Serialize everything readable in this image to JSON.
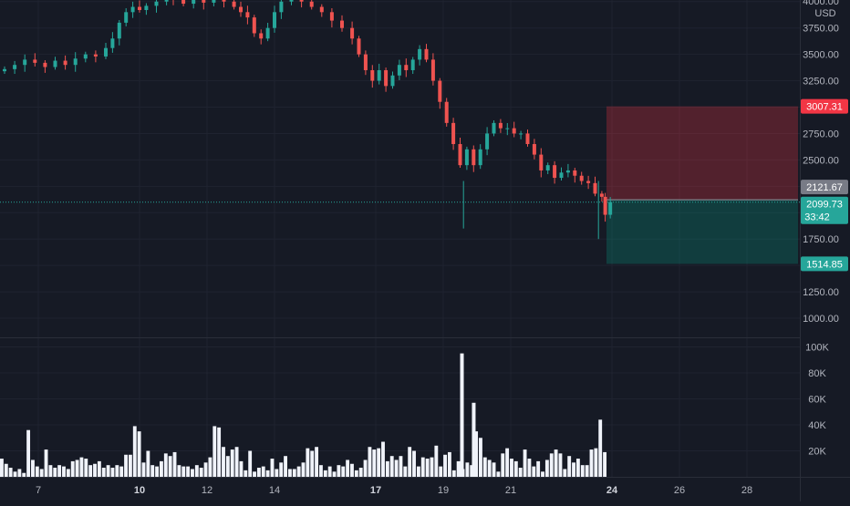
{
  "chart_data": {
    "type": "candlestick",
    "currency_label": "USD",
    "price_axis": {
      "range": [
        850,
        4050
      ],
      "ticks": [
        "4000.00",
        "3750.00",
        "3500.00",
        "3250.00",
        "3000.00",
        "2750.00",
        "2500.00",
        "2250.00",
        "2000.00",
        "1750.00",
        "1500.00",
        "1250.00",
        "1000.00"
      ]
    },
    "volume_axis": {
      "range": [
        0,
        105000
      ],
      "ticks": [
        "100K",
        "80K",
        "60K",
        "40K",
        "20K"
      ]
    },
    "time_axis": {
      "labels": [
        {
          "day": 7,
          "text": "7",
          "bold": false
        },
        {
          "day": 10,
          "text": "10",
          "bold": true
        },
        {
          "day": 12,
          "text": "12",
          "bold": false
        },
        {
          "day": 14,
          "text": "14",
          "bold": false
        },
        {
          "day": 17,
          "text": "17",
          "bold": true
        },
        {
          "day": 19,
          "text": "19",
          "bold": false
        },
        {
          "day": 21,
          "text": "21",
          "bold": false
        },
        {
          "day": 24,
          "text": "24",
          "bold": true
        },
        {
          "day": 26,
          "text": "26",
          "bold": false
        },
        {
          "day": 28,
          "text": "28",
          "bold": false
        }
      ]
    },
    "position": {
      "stop_loss": 3007.31,
      "entry": 2121.67,
      "take_profit": 1514.85,
      "stop_label": "3007.31",
      "entry_label": "2121.67",
      "target_label": "1514.85"
    },
    "current_price": {
      "value": 2099.73,
      "label": "2099.73",
      "countdown": "33:42"
    },
    "series": [
      {
        "name": "price",
        "description_points_day_close": [
          [
            6.0,
            3360
          ],
          [
            6.3,
            3400
          ],
          [
            6.6,
            3450
          ],
          [
            6.9,
            3420
          ],
          [
            7.2,
            3380
          ],
          [
            7.5,
            3440
          ],
          [
            7.8,
            3400
          ],
          [
            8.1,
            3460
          ],
          [
            8.4,
            3500
          ],
          [
            8.7,
            3480
          ],
          [
            9.0,
            3560
          ],
          [
            9.2,
            3650
          ],
          [
            9.4,
            3800
          ],
          [
            9.6,
            3900
          ],
          [
            9.8,
            3950
          ],
          [
            10.0,
            3920
          ],
          [
            10.2,
            3960
          ],
          [
            10.5,
            4000
          ],
          [
            10.8,
            4050
          ],
          [
            11.0,
            4020
          ],
          [
            11.3,
            3980
          ],
          [
            11.6,
            4030
          ],
          [
            11.9,
            3990
          ],
          [
            12.2,
            4050
          ],
          [
            12.5,
            4000
          ],
          [
            12.8,
            3950
          ],
          [
            13.0,
            3900
          ],
          [
            13.2,
            3850
          ],
          [
            13.4,
            3700
          ],
          [
            13.6,
            3650
          ],
          [
            13.8,
            3750
          ],
          [
            14.0,
            3900
          ],
          [
            14.2,
            4000
          ],
          [
            14.5,
            4030
          ],
          [
            14.8,
            4000
          ],
          [
            15.1,
            3950
          ],
          [
            15.4,
            3900
          ],
          [
            15.7,
            3820
          ],
          [
            16.0,
            3750
          ],
          [
            16.3,
            3650
          ],
          [
            16.5,
            3500
          ],
          [
            16.7,
            3350
          ],
          [
            16.9,
            3250
          ],
          [
            17.1,
            3350
          ],
          [
            17.3,
            3200
          ],
          [
            17.5,
            3300
          ],
          [
            17.7,
            3400
          ],
          [
            17.9,
            3350
          ],
          [
            18.1,
            3450
          ],
          [
            18.3,
            3550
          ],
          [
            18.5,
            3450
          ],
          [
            18.7,
            3250
          ],
          [
            18.9,
            3050
          ],
          [
            19.1,
            2850
          ],
          [
            19.3,
            2650
          ],
          [
            19.5,
            2450
          ],
          [
            19.7,
            2600
          ],
          [
            19.9,
            2450
          ],
          [
            20.1,
            2600
          ],
          [
            20.3,
            2750
          ],
          [
            20.5,
            2850
          ],
          [
            20.7,
            2800
          ],
          [
            20.9,
            2800
          ],
          [
            21.1,
            2750
          ],
          [
            21.3,
            2750
          ],
          [
            21.5,
            2650
          ],
          [
            21.7,
            2550
          ],
          [
            21.9,
            2400
          ],
          [
            22.1,
            2450
          ],
          [
            22.3,
            2330
          ],
          [
            22.5,
            2380
          ],
          [
            22.7,
            2400
          ],
          [
            22.9,
            2350
          ],
          [
            23.1,
            2300
          ],
          [
            23.3,
            2280
          ],
          [
            23.5,
            2180
          ],
          [
            23.7,
            2150
          ],
          [
            23.8,
            1980
          ],
          [
            23.95,
            2099.73
          ]
        ]
      }
    ],
    "volume_values_k": [
      14,
      10,
      7,
      4,
      6,
      3,
      36,
      13,
      8,
      6,
      21,
      9,
      7,
      9,
      8,
      6,
      12,
      13,
      15,
      14,
      9,
      10,
      12,
      7,
      9,
      7,
      9,
      8,
      17,
      17,
      39,
      35,
      11,
      20,
      9,
      8,
      12,
      18,
      16,
      19,
      9,
      8,
      8,
      6,
      9,
      7,
      11,
      15,
      39,
      38,
      23,
      16,
      21,
      23,
      12,
      5,
      20,
      4,
      7,
      8,
      5,
      14,
      6,
      11,
      16,
      6,
      6,
      8,
      11,
      22,
      20,
      23,
      9,
      5,
      8,
      4,
      9,
      8,
      13,
      10,
      5,
      7,
      13,
      23,
      21,
      22,
      27,
      12,
      16,
      13,
      16,
      8,
      23,
      20,
      8,
      15,
      14,
      15,
      24,
      8,
      17,
      19,
      5,
      12,
      6,
      11,
      9,
      35,
      30,
      15,
      13,
      11,
      4,
      18,
      22,
      14,
      12,
      7,
      21,
      14,
      8,
      12,
      4,
      13,
      18,
      21,
      18,
      6,
      16,
      11,
      14,
      9,
      9,
      21,
      22,
      44,
      19
    ]
  }
}
